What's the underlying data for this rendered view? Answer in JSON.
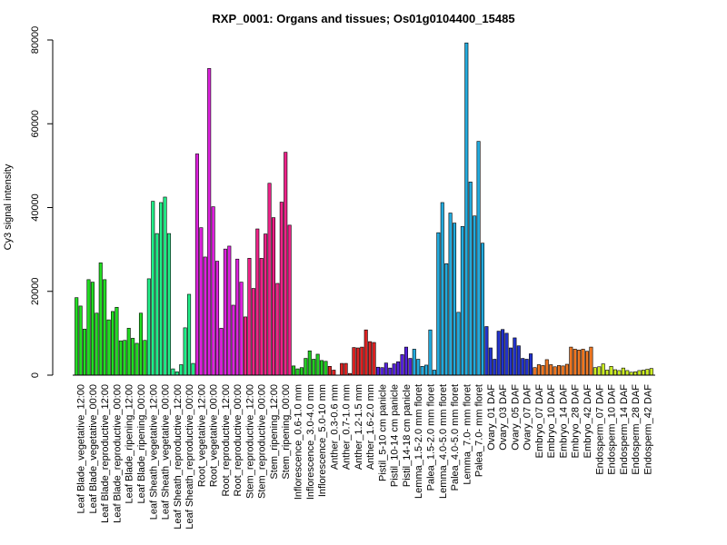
{
  "chart_data": {
    "type": "bar",
    "title": "RXP_0001: Organs and tissues; Os01g0104400_15485",
    "xlabel": "",
    "ylabel": "Cy3 signal intensity",
    "ylim": [
      0,
      80000
    ],
    "yticks": [
      0,
      20000,
      40000,
      60000,
      80000
    ],
    "grid": false,
    "legend": "none",
    "groups": [
      {
        "label": "Leaf Blade_vegetative_12:00",
        "color": "#22dd22",
        "values": [
          18500,
          16500,
          11000
        ]
      },
      {
        "label": "Leaf Blade_vegetative_00:00",
        "color": "#22dd22",
        "values": [
          22800,
          22200,
          14800
        ]
      },
      {
        "label": "Leaf Blade_reproductive_12:00",
        "color": "#22dd22",
        "values": [
          26800,
          22800,
          13200
        ]
      },
      {
        "label": "Leaf Blade_reproductive_00:00",
        "color": "#22dd22",
        "values": [
          15200,
          16200,
          8200
        ]
      },
      {
        "label": "Leaf Blade_ripening_12:00",
        "color": "#22dd22",
        "values": [
          8300,
          11200,
          8800
        ]
      },
      {
        "label": "Leaf Blade_ripening_00:00",
        "color": "#22dd22",
        "values": [
          7600,
          14800,
          8300
        ]
      },
      {
        "label": "Leaf Sheath_vegetative_12:00",
        "color": "#22ee88",
        "values": [
          23000,
          41500,
          33800
        ]
      },
      {
        "label": "Leaf Sheath_vegetative_00:00",
        "color": "#22ee88",
        "values": [
          41200,
          42500,
          33800
        ]
      },
      {
        "label": "Leaf Sheath_reproductive_12:00",
        "color": "#22ee88",
        "values": [
          1500,
          800,
          2500
        ]
      },
      {
        "label": "Leaf Sheath_reproductive_00:00",
        "color": "#22ee88",
        "values": [
          11300,
          19300,
          2800
        ]
      },
      {
        "label": "Root_vegetative_12:00",
        "color": "#dd22dd",
        "values": [
          52800,
          35200,
          28200
        ]
      },
      {
        "label": "Root_vegetative_00:00",
        "color": "#dd22dd",
        "values": [
          73200,
          40200,
          27200
        ]
      },
      {
        "label": "Root_reproductive_12:00",
        "color": "#dd22dd",
        "values": [
          11200,
          30100,
          30800
        ]
      },
      {
        "label": "Root_reproductive_00:00",
        "color": "#dd22dd",
        "values": [
          16700,
          27700,
          22200
        ]
      },
      {
        "label": "Stem_reproductive_12:00",
        "color": "#ee2288",
        "values": [
          13900,
          27900,
          20700
        ]
      },
      {
        "label": "Stem_reproductive_00:00",
        "color": "#ee2288",
        "values": [
          34900,
          27900,
          33700
        ]
      },
      {
        "label": "Stem_ripening_12:00",
        "color": "#ee2288",
        "values": [
          45800,
          37600,
          21900
        ]
      },
      {
        "label": "Stem_ripening_00:00",
        "color": "#ee2288",
        "values": [
          41300,
          53200,
          35800
        ]
      },
      {
        "label": "Inflorescence_0.6-1.0 mm",
        "color": "#22cc22",
        "values": [
          2200,
          1500,
          1800
        ]
      },
      {
        "label": "Inflorescence_3.0-4.0 mm",
        "color": "#22cc22",
        "values": [
          4000,
          5800,
          3800
        ]
      },
      {
        "label": "Inflorescence_5.0-10 mm",
        "color": "#22cc22",
        "values": [
          5000,
          3500,
          3300
        ]
      },
      {
        "label": "Anther_0.3-0.6 mm",
        "color": "#dd2222",
        "values": [
          2100,
          1200,
          0
        ]
      },
      {
        "label": "Anther_0.7-1.0 mm",
        "color": "#dd2222",
        "values": [
          2800,
          2800,
          400
        ]
      },
      {
        "label": "Anther_1.2-1.5 mm",
        "color": "#dd2222",
        "values": [
          6600,
          6500,
          6700
        ]
      },
      {
        "label": "Anther_1.6-2.0 mm",
        "color": "#dd2222",
        "values": [
          10800,
          8000,
          7800
        ]
      },
      {
        "label": "Pistil_5-10 cm panicle",
        "color": "#5522dd",
        "values": [
          1900,
          1800,
          2900
        ]
      },
      {
        "label": "Pistil_10-14 cm panicle",
        "color": "#5522dd",
        "values": [
          1700,
          2700,
          3200
        ]
      },
      {
        "label": "Pistil_14-18 cm panicle",
        "color": "#5522dd",
        "values": [
          4900,
          6700,
          4000
        ]
      },
      {
        "label": "Lemma_1.5-2.0 mm floret",
        "color": "#22aadd",
        "values": [
          6200,
          3800,
          2100
        ]
      },
      {
        "label": "Palea_1.5-2.0 mm floret",
        "color": "#22aadd",
        "values": [
          2400,
          10800,
          1200
        ]
      },
      {
        "label": "Lemma_4.0-5.0 mm floret",
        "color": "#22aadd",
        "values": [
          34000,
          41200,
          26600
        ]
      },
      {
        "label": "Palea_4.0-5.0 mm floret",
        "color": "#22aadd",
        "values": [
          38700,
          36300,
          15000
        ]
      },
      {
        "label": "Lemma_7.0- mm floret",
        "color": "#22aadd",
        "values": [
          35500,
          79300,
          46100
        ]
      },
      {
        "label": "Palea_7.0- mm floret",
        "color": "#22aadd",
        "values": [
          38000,
          55800,
          31500
        ]
      },
      {
        "label": "Ovary_01 DAF",
        "color": "#2233cc",
        "values": [
          11600,
          6500,
          3800
        ]
      },
      {
        "label": "Ovary_03 DAF",
        "color": "#2233cc",
        "values": [
          10500,
          10900,
          10000
        ]
      },
      {
        "label": "Ovary_05 DAF",
        "color": "#2233cc",
        "values": [
          6500,
          8900,
          7000
        ]
      },
      {
        "label": "Ovary_07 DAF",
        "color": "#2233cc",
        "values": [
          4000,
          3800,
          5100
        ]
      },
      {
        "label": "Embryo_07 DAF",
        "color": "#ee7722",
        "values": [
          1800,
          2500,
          2300
        ]
      },
      {
        "label": "Embryo_10 DAF",
        "color": "#ee7722",
        "values": [
          3700,
          2500,
          2000
        ]
      },
      {
        "label": "Embryo_14 DAF",
        "color": "#ee7722",
        "values": [
          2300,
          2200,
          2600
        ]
      },
      {
        "label": "Embryo_28 DAF",
        "color": "#ee7722",
        "values": [
          6700,
          6200,
          6000
        ]
      },
      {
        "label": "Embryo_42 DAF",
        "color": "#ee7722",
        "values": [
          6200,
          5700,
          6700
        ]
      },
      {
        "label": "Endosperm_07 DAF",
        "color": "#ccee22",
        "values": [
          1800,
          2000,
          2700
        ]
      },
      {
        "label": "Endosperm_10 DAF",
        "color": "#ccee22",
        "values": [
          1200,
          2100,
          1300
        ]
      },
      {
        "label": "Endosperm_14 DAF",
        "color": "#ccee22",
        "values": [
          1100,
          1700,
          1100
        ]
      },
      {
        "label": "Endosperm_28 DAF",
        "color": "#ccee22",
        "values": [
          700,
          800,
          1100
        ]
      },
      {
        "label": "Endosperm_42 DAF",
        "color": "#ccee22",
        "values": [
          1200,
          1400,
          1600
        ]
      }
    ]
  }
}
